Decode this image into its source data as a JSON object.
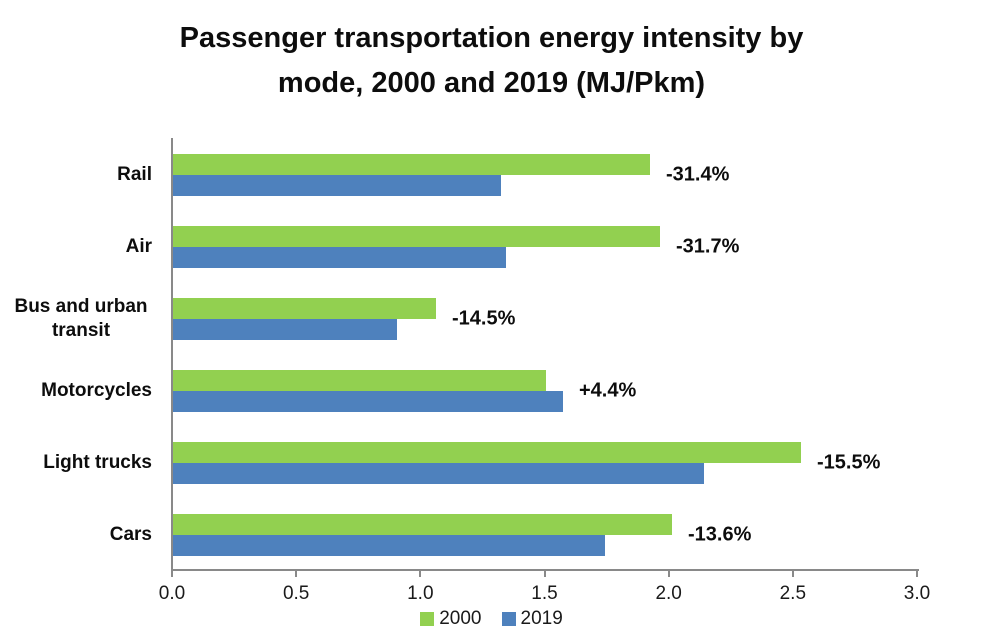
{
  "title": {
    "line1": "Passenger transportation energy intensity by",
    "line2": "mode, 2000 and 2019 (MJ/Pkm)"
  },
  "chart_data": {
    "type": "bar",
    "orientation": "horizontal",
    "title": "Passenger transportation energy intensity by mode, 2000 and 2019 (MJ/Pkm)",
    "categories": [
      "Rail",
      "Air",
      "Bus and urban transit",
      "Motorcycles",
      "Light trucks",
      "Cars"
    ],
    "series": [
      {
        "name": "2000",
        "color": "#92D050",
        "values": [
          1.92,
          1.96,
          1.06,
          1.5,
          2.53,
          2.01
        ]
      },
      {
        "name": "2019",
        "color": "#4E81BD",
        "values": [
          1.32,
          1.34,
          0.9,
          1.57,
          2.14,
          1.74
        ]
      }
    ],
    "change_labels": [
      "-31.4%",
      "-31.7%",
      "-14.5%",
      "+4.4%",
      "-15.5%",
      "-13.6%"
    ],
    "xlabel": "",
    "ylabel": "",
    "xlim": [
      0,
      3.0
    ],
    "x_ticks": [
      "0.0",
      "0.5",
      "1.0",
      "1.5",
      "2.0",
      "2.5",
      "3.0"
    ],
    "grid": false,
    "legend": [
      "2000",
      "2019"
    ],
    "legend_position": "bottom",
    "axis_color": "#898989"
  }
}
